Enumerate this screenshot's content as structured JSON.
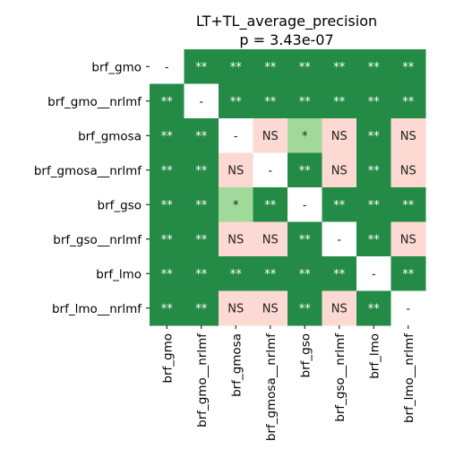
{
  "chart_data": {
    "type": "heatmap",
    "title": "LT+TL_average_precision",
    "subtitle": "p = 3.43e-07",
    "labels": [
      "brf_gmo",
      "brf_gmo__nrlmf",
      "brf_gmosa",
      "brf_gmosa__nrlmf",
      "brf_gso",
      "brf_gso__nrlmf",
      "brf_lmo",
      "brf_lmo__nrlmf"
    ],
    "matrix": [
      [
        "-",
        "**",
        "**",
        "**",
        "**",
        "**",
        "**",
        "**"
      ],
      [
        "**",
        "-",
        "**",
        "**",
        "**",
        "**",
        "**",
        "**"
      ],
      [
        "**",
        "**",
        "-",
        "NS",
        "*",
        "NS",
        "**",
        "NS"
      ],
      [
        "**",
        "**",
        "NS",
        "-",
        "**",
        "NS",
        "**",
        "NS"
      ],
      [
        "**",
        "**",
        "*",
        "**",
        "-",
        "**",
        "**",
        "**"
      ],
      [
        "**",
        "**",
        "NS",
        "NS",
        "**",
        "-",
        "**",
        "NS"
      ],
      [
        "**",
        "**",
        "**",
        "**",
        "**",
        "**",
        "-",
        "**"
      ],
      [
        "**",
        "**",
        "NS",
        "NS",
        "**",
        "NS",
        "**",
        "-"
      ]
    ],
    "colors": {
      "**": "#238b45",
      "*": "#a1d99b",
      "NS": "#fcd9d2",
      "-": "#ffffff"
    },
    "text_colors": {
      "**": "#ffffff",
      "*": "#222222",
      "NS": "#222222",
      "-": "#222222"
    }
  }
}
